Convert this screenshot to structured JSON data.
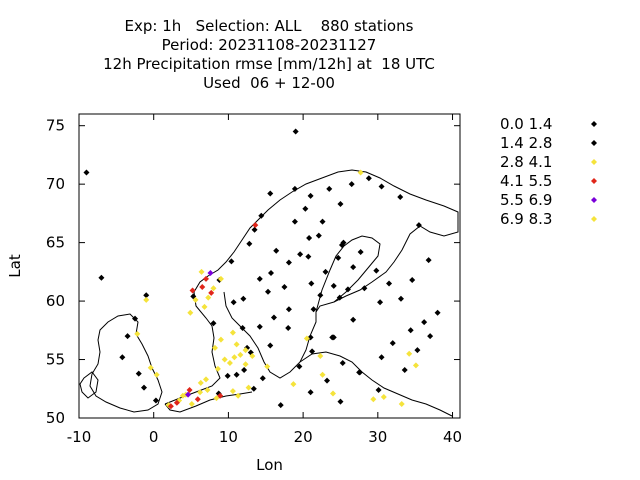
{
  "header": {
    "line1": "Exp: 1h   Selection: ALL    880 stations",
    "line2": "Period: 20231108-20231127",
    "line3": "12h Precipitation rmse [mm/12h] at  18 UTC",
    "line4": "Used  06 + 12-00"
  },
  "chart_data": {
    "type": "scatter",
    "title": "12h Precipitation rmse [mm/12h] at  18 UTC",
    "xlabel": "Lon",
    "ylabel": "Lat",
    "xlim": [
      -10,
      41
    ],
    "ylim": [
      50,
      76
    ],
    "xticks": [
      -10,
      0,
      10,
      20,
      30,
      40
    ],
    "yticks": [
      50,
      55,
      60,
      65,
      70,
      75
    ],
    "grid": false,
    "legend_position": "right",
    "series": [
      {
        "name": "0.0 1.4",
        "color": "#000000",
        "points": [
          [
            19.0,
            74.5
          ],
          [
            15.6,
            69.2
          ],
          [
            18.9,
            69.6
          ],
          [
            25.0,
            68.3
          ],
          [
            27.7,
            64.2
          ],
          [
            25.4,
            65.0
          ],
          [
            22.1,
            65.6
          ],
          [
            23.0,
            62.5
          ],
          [
            24.9,
            60.3
          ],
          [
            26.0,
            61.0
          ],
          [
            28.2,
            61.1
          ],
          [
            24.7,
            63.7
          ],
          [
            26.7,
            62.9
          ],
          [
            29.8,
            62.6
          ],
          [
            22.3,
            60.5
          ],
          [
            21.4,
            59.3
          ],
          [
            21.1,
            61.5
          ],
          [
            24.1,
            61.3
          ],
          [
            25.2,
            64.8
          ],
          [
            20.7,
            63.8
          ],
          [
            18.1,
            59.3
          ],
          [
            17.5,
            61.2
          ],
          [
            16.1,
            58.6
          ],
          [
            18.0,
            57.7
          ],
          [
            14.2,
            57.8
          ],
          [
            13.0,
            55.6
          ],
          [
            15.6,
            56.2
          ],
          [
            11.9,
            57.7
          ],
          [
            12.5,
            56.0
          ],
          [
            18.1,
            63.3
          ],
          [
            15.3,
            60.8
          ],
          [
            10.7,
            59.9
          ],
          [
            5.3,
            60.4
          ],
          [
            8.0,
            58.1
          ],
          [
            10.4,
            63.4
          ],
          [
            14.4,
            67.3
          ],
          [
            18.9,
            66.8
          ],
          [
            20.3,
            67.9
          ],
          [
            21.0,
            56.9
          ],
          [
            25.3,
            54.7
          ],
          [
            23.9,
            56.9
          ],
          [
            24.1,
            56.9
          ],
          [
            21.2,
            55.7
          ],
          [
            26.7,
            58.4
          ],
          [
            27.6,
            53.9
          ],
          [
            30.3,
            59.9
          ],
          [
            33.1,
            60.2
          ],
          [
            34.4,
            57.5
          ],
          [
            32.0,
            56.4
          ],
          [
            30.5,
            55.2
          ],
          [
            17.0,
            51.1
          ],
          [
            21.0,
            52.2
          ],
          [
            19.5,
            54.4
          ],
          [
            14.6,
            53.4
          ],
          [
            13.4,
            52.5
          ],
          [
            11.1,
            53.7
          ],
          [
            9.9,
            53.6
          ],
          [
            12.1,
            54.1
          ],
          [
            8.7,
            52.1
          ],
          [
            27.5,
            53.9
          ],
          [
            30.1,
            52.4
          ],
          [
            36.2,
            58.2
          ]
        ]
      },
      {
        "name": "1.4 2.8",
        "color": "#000000",
        "points": [
          [
            -9.0,
            71.0
          ],
          [
            -7.0,
            62.0
          ],
          [
            -1.0,
            60.5
          ],
          [
            -2.5,
            58.5
          ],
          [
            -3.5,
            57.0
          ],
          [
            -4.2,
            55.2
          ],
          [
            -2.0,
            53.8
          ],
          [
            -1.3,
            52.6
          ],
          [
            0.3,
            51.5
          ],
          [
            21.0,
            69.0
          ],
          [
            23.5,
            69.6
          ],
          [
            26.5,
            70.0
          ],
          [
            28.8,
            70.5
          ],
          [
            30.5,
            69.8
          ],
          [
            33.0,
            68.9
          ],
          [
            35.5,
            66.5
          ],
          [
            36.8,
            63.5
          ],
          [
            34.6,
            61.8
          ],
          [
            31.5,
            61.5
          ],
          [
            38.0,
            59.0
          ],
          [
            37.0,
            57.0
          ],
          [
            35.3,
            55.8
          ],
          [
            33.6,
            54.1
          ],
          [
            25.0,
            51.4
          ],
          [
            23.2,
            53.2
          ],
          [
            12.8,
            64.9
          ],
          [
            13.5,
            66.1
          ],
          [
            8.8,
            61.8
          ],
          [
            16.4,
            64.3
          ],
          [
            15.7,
            62.4
          ],
          [
            19.6,
            64.0
          ],
          [
            20.8,
            65.4
          ],
          [
            22.6,
            66.8
          ],
          [
            14.2,
            61.9
          ],
          [
            12.0,
            60.2
          ]
        ]
      },
      {
        "name": "2.8 4.1",
        "color": "#f5e33b",
        "points": [
          [
            -1.0,
            60.1
          ],
          [
            -2.2,
            57.2
          ],
          [
            -0.4,
            54.3
          ],
          [
            0.4,
            53.7
          ],
          [
            3.4,
            51.5
          ],
          [
            4.3,
            52.0
          ],
          [
            5.1,
            51.2
          ],
          [
            6.2,
            52.2
          ],
          [
            7.0,
            53.3
          ],
          [
            8.6,
            54.2
          ],
          [
            9.5,
            55.0
          ],
          [
            10.2,
            54.7
          ],
          [
            11.1,
            56.3
          ],
          [
            11.6,
            55.4
          ],
          [
            12.3,
            55.8
          ],
          [
            13.2,
            55.3
          ],
          [
            9.0,
            56.7
          ],
          [
            10.6,
            57.3
          ],
          [
            8.2,
            56.0
          ],
          [
            10.8,
            55.2
          ],
          [
            6.3,
            53.0
          ],
          [
            7.2,
            52.4
          ],
          [
            8.4,
            51.7
          ],
          [
            10.6,
            52.3
          ],
          [
            11.3,
            51.9
          ],
          [
            12.7,
            52.6
          ],
          [
            15.2,
            54.4
          ],
          [
            18.7,
            52.9
          ],
          [
            22.6,
            53.7
          ],
          [
            24.0,
            52.1
          ],
          [
            29.4,
            51.6
          ],
          [
            30.8,
            51.8
          ],
          [
            33.2,
            51.2
          ],
          [
            35.1,
            54.5
          ],
          [
            34.2,
            55.5
          ],
          [
            22.3,
            55.3
          ],
          [
            20.5,
            56.8
          ],
          [
            27.7,
            71.0
          ],
          [
            5.6,
            60.1
          ],
          [
            6.8,
            59.5
          ],
          [
            7.3,
            60.3
          ],
          [
            8.0,
            61.1
          ],
          [
            9.0,
            61.9
          ],
          [
            6.4,
            62.5
          ],
          [
            4.9,
            59.0
          ],
          [
            12.3,
            54.6
          ],
          [
            3.9,
            51.9
          ],
          [
            2.0,
            51.1
          ]
        ]
      },
      {
        "name": "4.1 5.5",
        "color": "#e0261a",
        "points": [
          [
            5.2,
            60.9
          ],
          [
            6.5,
            61.2
          ],
          [
            7.0,
            61.9
          ],
          [
            7.7,
            60.7
          ],
          [
            3.1,
            51.3
          ],
          [
            2.3,
            51.0
          ],
          [
            4.8,
            52.4
          ],
          [
            5.9,
            51.6
          ],
          [
            8.9,
            51.9
          ],
          [
            13.6,
            66.5
          ]
        ]
      },
      {
        "name": "5.5 6.9",
        "color": "#7a00d9",
        "points": [
          [
            7.6,
            62.4
          ],
          [
            4.6,
            52.0
          ]
        ]
      },
      {
        "name": "6.9 8.3",
        "color": "#f5e33b",
        "points": []
      }
    ]
  }
}
